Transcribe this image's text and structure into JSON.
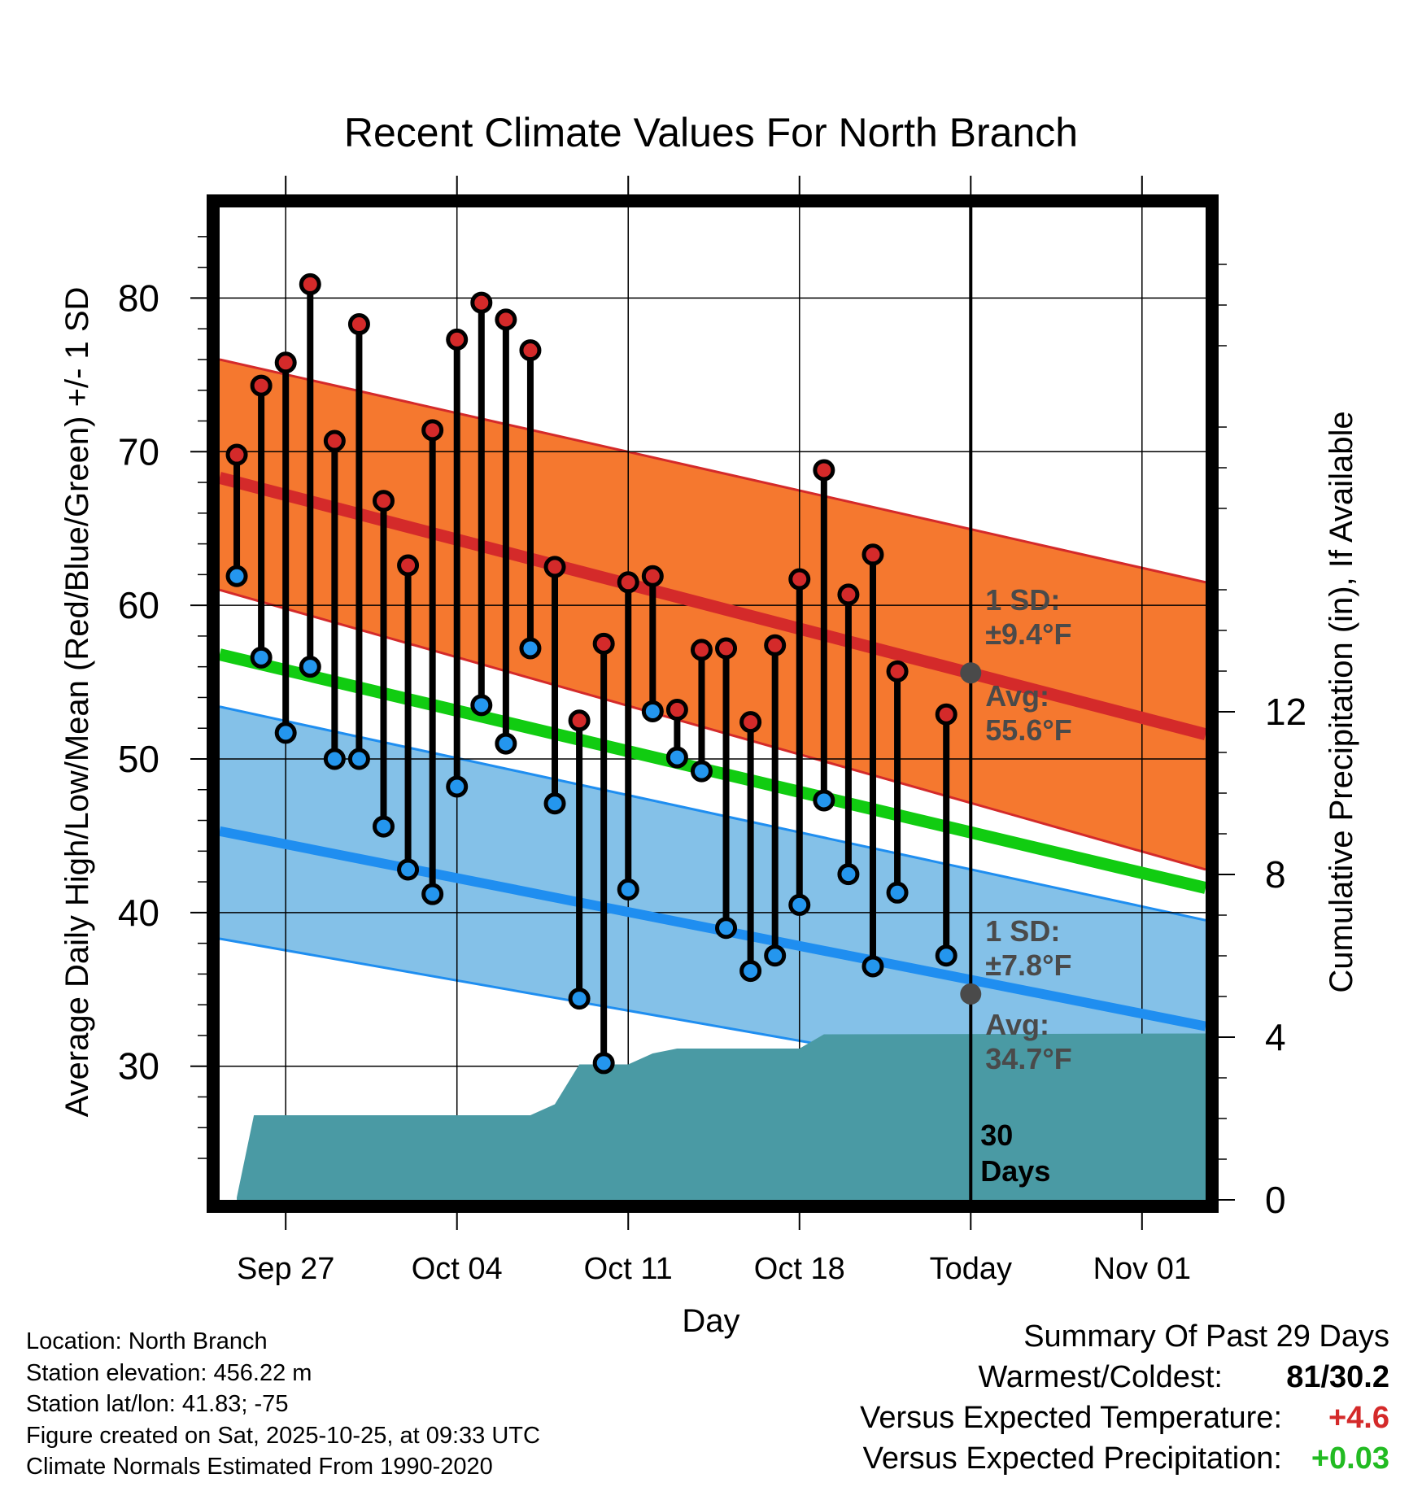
{
  "chart_data": {
    "type": "line",
    "title": "Recent Climate Values For North Branch",
    "xlabel": "Day",
    "ylabel": "Average Daily High/Low/Mean (Red/Blue/Green) +/- 1 SD",
    "y2label": "Cumulative Precipitation (in), If Available",
    "x_tick_labels": [
      "Sep 27",
      "Oct 04",
      "Oct 11",
      "Oct 18",
      "Today",
      "Nov 01"
    ],
    "x_tick_days": [
      2,
      9,
      16,
      23,
      30,
      37
    ],
    "xlim": [
      -0.7,
      39.6
    ],
    "ylim": [
      21.3,
      85.9
    ],
    "y_ticks": [
      30,
      40,
      50,
      60,
      70,
      80
    ],
    "y2lim": [
      0,
      24.4
    ],
    "y2_ticks": [
      0,
      4,
      8,
      12
    ],
    "today_day": 30,
    "today_label_line1": "30",
    "today_label_line2": "Days",
    "normal_high": {
      "start": 68.3,
      "end": 51.6,
      "sd_low_start": 61.0,
      "sd_low_end": 42.8,
      "sd_high_start": 76.0,
      "sd_high_end": 61.5
    },
    "normal_mean": {
      "start": 56.8,
      "end": 41.6
    },
    "normal_low": {
      "start": 45.3,
      "end": 32.6,
      "sd_low_start": 38.3,
      "sd_low_end": 27.0,
      "sd_high_start": 53.4,
      "sd_high_end": 39.5
    },
    "annotations": {
      "high_sd_label": "1 SD:",
      "high_sd_value": "±9.4°F",
      "high_avg_label": "Avg:",
      "high_avg_value": "55.6°F",
      "low_sd_label": "1 SD:",
      "low_sd_value": "±7.8°F",
      "low_avg_label": "Avg:",
      "low_avg_value": "34.7°F",
      "today_high_avg": 55.6,
      "today_low_avg": 34.7
    },
    "series": [
      {
        "name": "Daily High",
        "color": "#d42a2a",
        "values": [
          69.8,
          74.3,
          75.8,
          80.9,
          70.7,
          78.3,
          66.8,
          62.6,
          71.4,
          77.3,
          79.7,
          78.6,
          76.6,
          62.5,
          52.5,
          57.5,
          61.5,
          61.9,
          53.2,
          57.1,
          57.2,
          52.4,
          57.4,
          61.7,
          68.8,
          60.7,
          63.3,
          55.7,
          null,
          52.9
        ]
      },
      {
        "name": "Daily Low",
        "color": "#2496ee",
        "values": [
          61.9,
          56.6,
          51.7,
          56.0,
          50.0,
          50.0,
          45.6,
          42.8,
          41.2,
          48.2,
          53.5,
          51.0,
          57.2,
          47.1,
          34.4,
          30.2,
          41.5,
          53.1,
          50.1,
          49.2,
          39.0,
          36.2,
          37.2,
          40.5,
          47.3,
          42.5,
          36.5,
          41.3,
          null,
          37.2
        ]
      },
      {
        "name": "Cumulative Precipitation",
        "color": "#4a9aa4",
        "axis": "y2",
        "x": [
          0,
          0.7,
          12,
          13,
          14,
          16,
          17,
          18,
          23,
          24,
          39.6
        ],
        "values": [
          0.06,
          2.08,
          2.08,
          2.35,
          3.33,
          3.33,
          3.6,
          3.72,
          3.72,
          4.07,
          4.09
        ]
      }
    ],
    "days": [
      0,
      1,
      2,
      3,
      4,
      5,
      6,
      7,
      8,
      9,
      10,
      11,
      12,
      13,
      14,
      15,
      16,
      17,
      18,
      19,
      20,
      21,
      22,
      23,
      24,
      25,
      26,
      27,
      28,
      29
    ],
    "colors": {
      "high_band": "#f5782f",
      "high_line": "#d42a2a",
      "mean_line": "#11cc11",
      "low_band": "#84c1e8",
      "low_line": "#1f8ef0",
      "precip": "#4a9aa4",
      "annotation": "#4a4a4a"
    }
  },
  "footer": {
    "location": "Location: North Branch",
    "elevation": "Station elevation: 456.22 m",
    "latlon": "Station lat/lon: 41.83; -75",
    "created": "Figure created on Sat, 2025-10-25, at 09:33 UTC",
    "normals": "Climate Normals Estimated From 1990-2020"
  },
  "summary": {
    "title": "Summary Of Past 29 Days",
    "warm_cold_label": "Warmest/Coldest:",
    "warm_cold_value": "81/30.2",
    "temp_label": "Versus Expected Temperature:",
    "temp_value": "+4.6",
    "temp_color": "#d42a2a",
    "precip_label": "Versus Expected Precipitation:",
    "precip_value": "+0.03",
    "precip_color": "#22bb22"
  }
}
